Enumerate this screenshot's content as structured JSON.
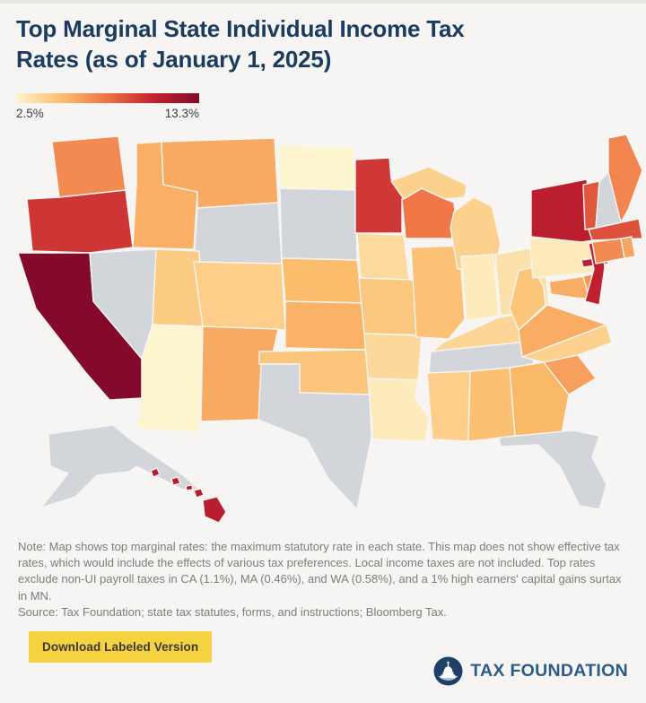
{
  "header": {
    "title_lines": [
      "Top Marginal State Individual Income Tax",
      "Rates (as of January 1, 2025)"
    ]
  },
  "legend": {
    "min_label": "2.5%",
    "max_label": "13.3%",
    "min_value": 2.5,
    "max_value": 13.3,
    "gradient_stops": [
      "#fdf5cd",
      "#fbbd6c",
      "#ef7044",
      "#c22230",
      "#830a2a"
    ],
    "no_income_tax_color": "#d2d5da"
  },
  "map": {
    "type": "choropleth",
    "region": "United States",
    "value_unit": "percent top marginal individual income tax rate",
    "states": [
      {
        "code": "WA",
        "name": "Washington",
        "rate": 7.0
      },
      {
        "code": "OR",
        "name": "Oregon",
        "rate": 9.9
      },
      {
        "code": "CA",
        "name": "California",
        "rate": 13.3
      },
      {
        "code": "NV",
        "name": "Nevada",
        "rate": null
      },
      {
        "code": "ID",
        "name": "Idaho",
        "rate": 5.695
      },
      {
        "code": "MT",
        "name": "Montana",
        "rate": 5.9
      },
      {
        "code": "WY",
        "name": "Wyoming",
        "rate": null
      },
      {
        "code": "UT",
        "name": "Utah",
        "rate": 4.55
      },
      {
        "code": "CO",
        "name": "Colorado",
        "rate": 4.4
      },
      {
        "code": "AZ",
        "name": "Arizona",
        "rate": 2.5
      },
      {
        "code": "NM",
        "name": "New Mexico",
        "rate": 5.9
      },
      {
        "code": "ND",
        "name": "North Dakota",
        "rate": 2.5
      },
      {
        "code": "SD",
        "name": "South Dakota",
        "rate": null
      },
      {
        "code": "NE",
        "name": "Nebraska",
        "rate": 5.2
      },
      {
        "code": "KS",
        "name": "Kansas",
        "rate": 5.58
      },
      {
        "code": "OK",
        "name": "Oklahoma",
        "rate": 4.75
      },
      {
        "code": "TX",
        "name": "Texas",
        "rate": null
      },
      {
        "code": "MN",
        "name": "Minnesota",
        "rate": 9.85
      },
      {
        "code": "IA",
        "name": "Iowa",
        "rate": 3.8
      },
      {
        "code": "MO",
        "name": "Missouri",
        "rate": 4.7
      },
      {
        "code": "AR",
        "name": "Arkansas",
        "rate": 3.9
      },
      {
        "code": "LA",
        "name": "Louisiana",
        "rate": 3.0
      },
      {
        "code": "WI",
        "name": "Wisconsin",
        "rate": 7.65
      },
      {
        "code": "IL",
        "name": "Illinois",
        "rate": 4.95
      },
      {
        "code": "MI",
        "name": "Michigan",
        "rate": 4.25
      },
      {
        "code": "IN",
        "name": "Indiana",
        "rate": 3.0
      },
      {
        "code": "OH",
        "name": "Ohio",
        "rate": 3.5
      },
      {
        "code": "KY",
        "name": "Kentucky",
        "rate": 4.0
      },
      {
        "code": "TN",
        "name": "Tennessee",
        "rate": null
      },
      {
        "code": "MS",
        "name": "Mississippi",
        "rate": 4.4
      },
      {
        "code": "AL",
        "name": "Alabama",
        "rate": 5.0
      },
      {
        "code": "GA",
        "name": "Georgia",
        "rate": 5.39
      },
      {
        "code": "FL",
        "name": "Florida",
        "rate": null
      },
      {
        "code": "SC",
        "name": "South Carolina",
        "rate": 6.2
      },
      {
        "code": "NC",
        "name": "North Carolina",
        "rate": 4.25
      },
      {
        "code": "VA",
        "name": "Virginia",
        "rate": 5.75
      },
      {
        "code": "WV",
        "name": "West Virginia",
        "rate": 4.82
      },
      {
        "code": "PA",
        "name": "Pennsylvania",
        "rate": 3.07
      },
      {
        "code": "NY",
        "name": "New York",
        "rate": 10.9
      },
      {
        "code": "MD",
        "name": "Maryland",
        "rate": 5.75
      },
      {
        "code": "DE",
        "name": "Delaware",
        "rate": 6.6
      },
      {
        "code": "NJ",
        "name": "New Jersey",
        "rate": 10.75
      },
      {
        "code": "VT",
        "name": "Vermont",
        "rate": 8.75
      },
      {
        "code": "NH",
        "name": "New Hampshire",
        "rate": null
      },
      {
        "code": "ME",
        "name": "Maine",
        "rate": 7.15
      },
      {
        "code": "MA",
        "name": "Massachusetts",
        "rate": 9.0
      },
      {
        "code": "CT",
        "name": "Connecticut",
        "rate": 6.99
      },
      {
        "code": "RI",
        "name": "Rhode Island",
        "rate": 5.99
      },
      {
        "code": "AK",
        "name": "Alaska",
        "rate": null
      },
      {
        "code": "HI",
        "name": "Hawaii",
        "rate": 11.0
      }
    ]
  },
  "notes": {
    "note": "Note: Map shows top marginal rates: the maximum statutory rate in each state. This map does not show effective tax rates, which would include the effects of various tax preferences. Local income taxes are not included. Top rates exclude non-UI payroll taxes in CA (1.1%), MA (0.46%), and WA (0.58%), and a 1% high earners' capital gains surtax in MN.",
    "source": "Source: Tax Foundation; state tax statutes, forms, and instructions; Bloomberg Tax."
  },
  "footer": {
    "button_label": "Download Labeled Version",
    "brand_name": "TAX FOUNDATION"
  }
}
